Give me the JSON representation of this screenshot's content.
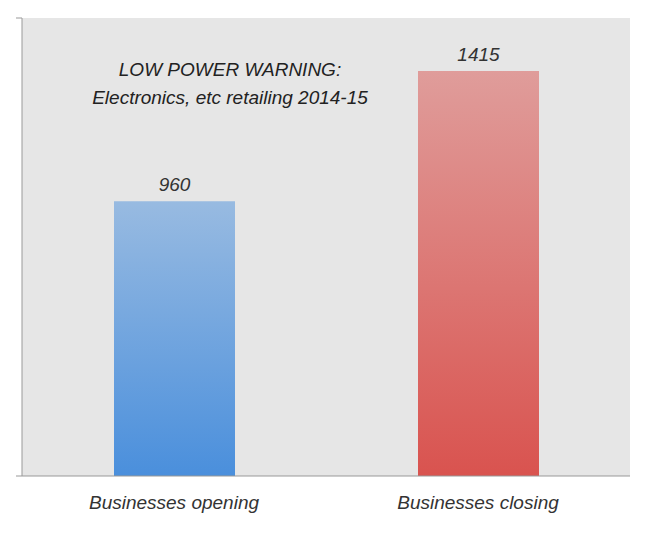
{
  "chart_data": {
    "type": "bar",
    "title": "LOW POWER WARNING:",
    "subtitle": "Electronics, etc retailing 2014-15",
    "categories": [
      "Businesses opening",
      "Businesses closing"
    ],
    "values": [
      960,
      1415
    ],
    "colors": [
      "#4a8fdc",
      "#d9534f"
    ],
    "ylim": [
      0,
      1600
    ],
    "yticks": [
      0,
      1600
    ],
    "grid": false,
    "data_labels": true,
    "tick_labels": "x"
  }
}
